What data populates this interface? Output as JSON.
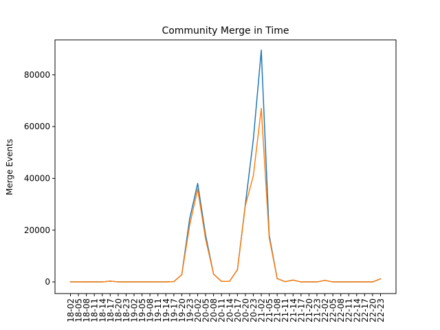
{
  "chart_data": {
    "type": "line",
    "title": "Community Merge in Time",
    "xlabel": "",
    "ylabel": "Merge Events",
    "x": [
      "18-02",
      "18-05",
      "18-08",
      "18-11",
      "18-14",
      "18-17",
      "18-20",
      "18-23",
      "19-02",
      "19-05",
      "19-08",
      "19-11",
      "19-14",
      "19-17",
      "19-20",
      "19-23",
      "20-02",
      "20-05",
      "20-08",
      "20-11",
      "20-14",
      "20-17",
      "20-20",
      "20-23",
      "21-02",
      "21-05",
      "21-08",
      "21-11",
      "21-14",
      "21-17",
      "21-20",
      "21-23",
      "22-02",
      "22-05",
      "22-08",
      "22-11",
      "22-14",
      "22-17",
      "22-20",
      "22-23"
    ],
    "ylim": [
      -4500,
      93500
    ],
    "yticks": [
      0,
      20000,
      40000,
      60000,
      80000
    ],
    "grid": false,
    "series": [
      {
        "color": "#1f77b4",
        "values": [
          0,
          0,
          0,
          0,
          0,
          300,
          0,
          0,
          0,
          0,
          0,
          0,
          0,
          100,
          2800,
          24500,
          38000,
          18000,
          3000,
          200,
          200,
          4700,
          30000,
          55000,
          89500,
          18000,
          1300,
          100,
          700,
          0,
          0,
          0,
          600,
          0,
          0,
          0,
          0,
          0,
          0,
          1200
        ]
      },
      {
        "color": "#ff7f0e",
        "values": [
          0,
          0,
          0,
          0,
          0,
          300,
          0,
          0,
          0,
          0,
          0,
          0,
          0,
          100,
          2800,
          22000,
          35800,
          16500,
          3000,
          200,
          200,
          4700,
          29500,
          41000,
          67000,
          17000,
          1300,
          100,
          700,
          0,
          0,
          0,
          600,
          0,
          0,
          0,
          0,
          0,
          0,
          1200
        ]
      }
    ]
  }
}
